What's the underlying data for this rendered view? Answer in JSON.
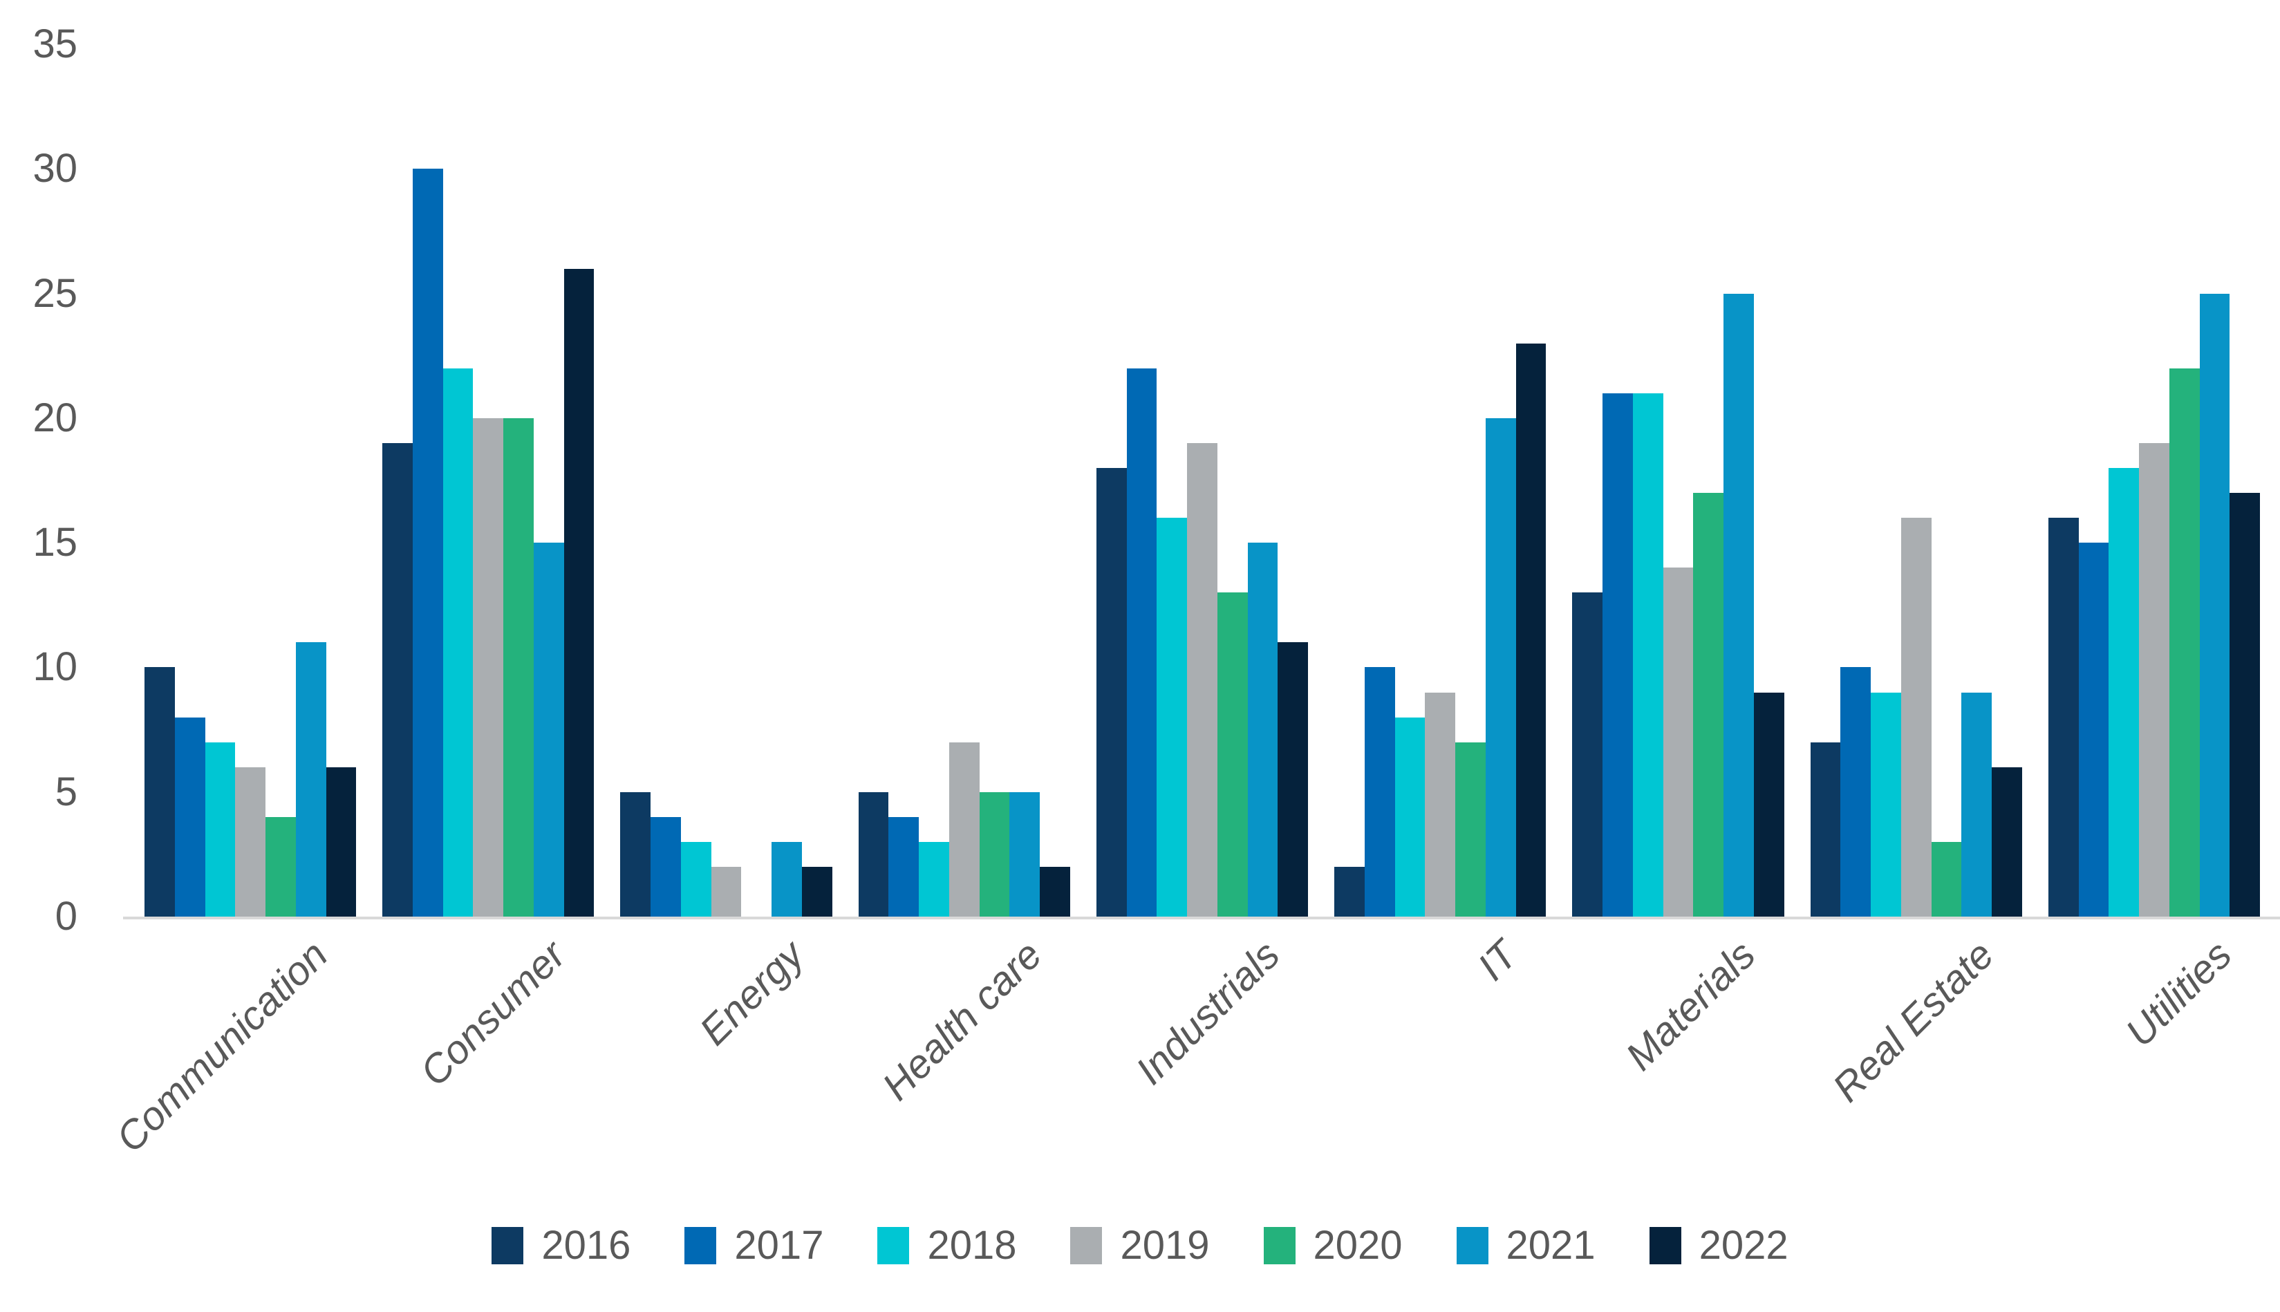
{
  "chart_data": {
    "type": "bar",
    "title": "",
    "categories": [
      "Communication",
      "Consumer",
      "Energy",
      "Health care",
      "Industrials",
      "IT",
      "Materials",
      "Real Estate",
      "Utilities"
    ],
    "series": [
      {
        "name": "2016",
        "color": "#0d3a62",
        "values": [
          10,
          19,
          5,
          5,
          18,
          2,
          13,
          7,
          16
        ]
      },
      {
        "name": "2017",
        "color": "#0069b4",
        "values": [
          8,
          30,
          4,
          4,
          22,
          10,
          21,
          10,
          15
        ]
      },
      {
        "name": "2018",
        "color": "#00c6d3",
        "values": [
          7,
          22,
          3,
          3,
          16,
          8,
          21,
          9,
          18
        ]
      },
      {
        "name": "2019",
        "color": "#aaaeb1",
        "values": [
          6,
          20,
          2,
          7,
          19,
          9,
          14,
          16,
          19
        ]
      },
      {
        "name": "2020",
        "color": "#24b27c",
        "values": [
          4,
          20,
          0,
          5,
          13,
          7,
          17,
          3,
          22
        ]
      },
      {
        "name": "2021",
        "color": "#0894c7",
        "values": [
          11,
          15,
          3,
          5,
          15,
          20,
          25,
          9,
          25
        ]
      },
      {
        "name": "2022",
        "color": "#05223c",
        "values": [
          6,
          26,
          2,
          2,
          11,
          23,
          9,
          6,
          17
        ]
      }
    ],
    "xlabel": "",
    "ylabel": "",
    "ylim": [
      0,
      35
    ],
    "yticks": [
      0,
      5,
      10,
      15,
      20,
      25,
      30,
      35
    ],
    "grid": false,
    "legend_position": "bottom",
    "axis_text_color": "#595959",
    "axis_line_color": "#d9d9d9",
    "background": "#ffffff"
  }
}
